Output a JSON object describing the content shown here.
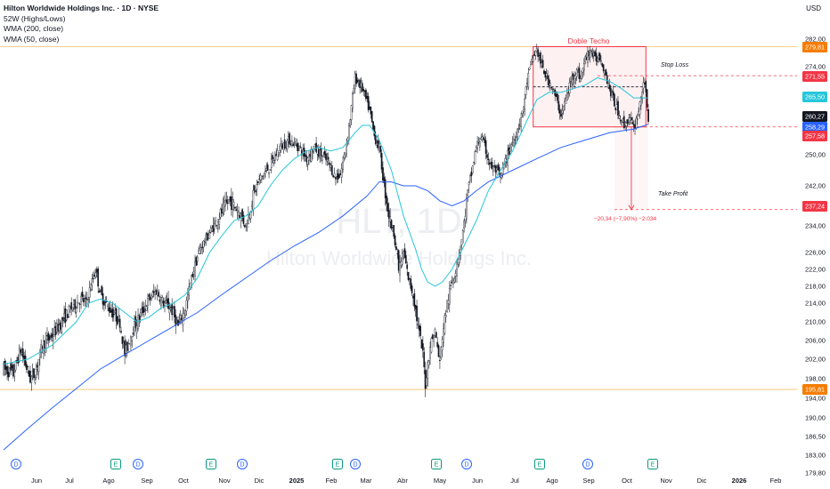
{
  "header": {
    "title": "Hilton Worldwide Holdings Inc. · 1D · NYSE",
    "indicators": [
      "52W (Highs/Lows)",
      "WMA (200, close)",
      "WMA (50, close)"
    ],
    "currency": "USD"
  },
  "watermark": {
    "ticker": "HLT, 1D",
    "company": "Hilton Worldwide Holdings Inc."
  },
  "chart_data": {
    "type": "candlestick",
    "y_axis": {
      "ticks": [
        282,
        274,
        266,
        258,
        250,
        242,
        234,
        226,
        222,
        218,
        214,
        210,
        206,
        202,
        198,
        194,
        190,
        186.5,
        183,
        179.8
      ],
      "tick_labels": [
        "282,00",
        "274,00",
        "266,00",
        "258,00",
        "250,00",
        "242,00",
        "234,00",
        "226,00",
        "222,00",
        "218,00",
        "214,00",
        "210,00",
        "206,00",
        "202,00",
        "198,00",
        "194,00",
        "190,00",
        "186,50",
        "183,00",
        "179,80"
      ],
      "scale": "log"
    },
    "x_axis": {
      "labels": [
        "Jun",
        "Jul",
        "Ago",
        "Sep",
        "Oct",
        "Nov",
        "Dic",
        "2025",
        "Feb",
        "Mar",
        "Abr",
        "May",
        "Jun",
        "Jul",
        "Ago",
        "Sep",
        "Oct",
        "Nov",
        "Dic",
        "2026",
        "Feb"
      ]
    },
    "price_labels": [
      {
        "value": "279,81",
        "color": "#f57c00"
      },
      {
        "value": "271,55",
        "color": "#f23645"
      },
      {
        "value": "265,50",
        "color": "#26c6da"
      },
      {
        "value": "260,27",
        "color": "#131722"
      },
      {
        "value": "258,29",
        "color": "#2962ff"
      },
      {
        "value": "257,58",
        "color": "#f23645"
      },
      {
        "value": "237,24",
        "color": "#f23645"
      },
      {
        "value": "195,81",
        "color": "#f57c00"
      }
    ],
    "levels": {
      "high_52w": 279.81,
      "low_52w": 195.81,
      "stop_loss": 271.55,
      "entry": 257.58,
      "take_profit": 237.24,
      "neckline": 268.5
    },
    "annotations": {
      "pattern_label": "Doble Techo",
      "stop_loss_label": "Stop Loss",
      "take_profit_label": "Take Profit",
      "measure_label": "−20,34 (−7,90%) −2.034"
    },
    "event_markers": [
      "D",
      "E",
      "D",
      "E",
      "D",
      "E",
      "D",
      "E",
      "D",
      "E",
      "D",
      "E"
    ],
    "close_series": [
      [
        0,
        200
      ],
      [
        8,
        199
      ],
      [
        14,
        204
      ],
      [
        22,
        198
      ],
      [
        26,
        199
      ],
      [
        32,
        205
      ],
      [
        40,
        207
      ],
      [
        48,
        210
      ],
      [
        56,
        213
      ],
      [
        64,
        215
      ],
      [
        68,
        214
      ],
      [
        72,
        218
      ],
      [
        76,
        222
      ],
      [
        80,
        216
      ],
      [
        84,
        214
      ],
      [
        90,
        212
      ],
      [
        96,
        210
      ],
      [
        100,
        203
      ],
      [
        106,
        208
      ],
      [
        112,
        211
      ],
      [
        118,
        214
      ],
      [
        126,
        217
      ],
      [
        132,
        214
      ],
      [
        138,
        213
      ],
      [
        144,
        209
      ],
      [
        150,
        213
      ],
      [
        156,
        221
      ],
      [
        162,
        227
      ],
      [
        170,
        232
      ],
      [
        178,
        236
      ],
      [
        186,
        239
      ],
      [
        194,
        237
      ],
      [
        200,
        234
      ],
      [
        206,
        240
      ],
      [
        212,
        244
      ],
      [
        220,
        247
      ],
      [
        228,
        252
      ],
      [
        236,
        254
      ],
      [
        244,
        252
      ],
      [
        250,
        249
      ],
      [
        256,
        252
      ],
      [
        262,
        250
      ],
      [
        268,
        248
      ],
      [
        274,
        244
      ],
      [
        278,
        245
      ],
      [
        282,
        251
      ],
      [
        286,
        260
      ],
      [
        290,
        271
      ],
      [
        296,
        268
      ],
      [
        302,
        262
      ],
      [
        306,
        255
      ],
      [
        310,
        252
      ],
      [
        314,
        242
      ],
      [
        318,
        236
      ],
      [
        322,
        232
      ],
      [
        326,
        222
      ],
      [
        330,
        226
      ],
      [
        334,
        220
      ],
      [
        338,
        216
      ],
      [
        342,
        209
      ],
      [
        346,
        203
      ],
      [
        348,
        197
      ],
      [
        352,
        205
      ],
      [
        356,
        208
      ],
      [
        360,
        201
      ],
      [
        362,
        207
      ],
      [
        366,
        214
      ],
      [
        370,
        219
      ],
      [
        374,
        223
      ],
      [
        378,
        230
      ],
      [
        382,
        239
      ],
      [
        386,
        245
      ],
      [
        390,
        252
      ],
      [
        394,
        255
      ],
      [
        398,
        251
      ],
      [
        402,
        247
      ],
      [
        406,
        246
      ],
      [
        410,
        244
      ],
      [
        414,
        248
      ],
      [
        418,
        252
      ],
      [
        422,
        255
      ],
      [
        428,
        261
      ],
      [
        432,
        270
      ],
      [
        436,
        276
      ],
      [
        440,
        279
      ],
      [
        444,
        274
      ],
      [
        448,
        271
      ],
      [
        452,
        269
      ],
      [
        456,
        265
      ],
      [
        460,
        261
      ],
      [
        464,
        265
      ],
      [
        468,
        270
      ],
      [
        472,
        273
      ],
      [
        476,
        271
      ],
      [
        480,
        276
      ],
      [
        484,
        279
      ],
      [
        488,
        276
      ],
      [
        492,
        277
      ],
      [
        496,
        273
      ],
      [
        500,
        268
      ],
      [
        504,
        264
      ],
      [
        508,
        261
      ],
      [
        512,
        258
      ],
      [
        516,
        260
      ],
      [
        520,
        257
      ],
      [
        524,
        262
      ],
      [
        528,
        270
      ],
      [
        530,
        266
      ],
      [
        532,
        260
      ]
    ],
    "wma50": [
      [
        0,
        201
      ],
      [
        20,
        202
      ],
      [
        40,
        205
      ],
      [
        60,
        210
      ],
      [
        70,
        214
      ],
      [
        80,
        215
      ],
      [
        90,
        214
      ],
      [
        100,
        212
      ],
      [
        110,
        210
      ],
      [
        120,
        211
      ],
      [
        130,
        213
      ],
      [
        140,
        214
      ],
      [
        150,
        216
      ],
      [
        160,
        220
      ],
      [
        170,
        226
      ],
      [
        180,
        231
      ],
      [
        190,
        235
      ],
      [
        200,
        236
      ],
      [
        210,
        238
      ],
      [
        220,
        242
      ],
      [
        230,
        246
      ],
      [
        240,
        249
      ],
      [
        250,
        251
      ],
      [
        260,
        252
      ],
      [
        270,
        251
      ],
      [
        280,
        252
      ],
      [
        290,
        256
      ],
      [
        296,
        258
      ],
      [
        302,
        258
      ],
      [
        310,
        254
      ],
      [
        320,
        246
      ],
      [
        330,
        236
      ],
      [
        340,
        227
      ],
      [
        345,
        222
      ],
      [
        350,
        219
      ],
      [
        356,
        218
      ],
      [
        362,
        219
      ],
      [
        370,
        222
      ],
      [
        380,
        228
      ],
      [
        390,
        235
      ],
      [
        400,
        241
      ],
      [
        410,
        246
      ],
      [
        420,
        251
      ],
      [
        430,
        258
      ],
      [
        440,
        265
      ],
      [
        450,
        267
      ],
      [
        460,
        267
      ],
      [
        470,
        268
      ],
      [
        480,
        269
      ],
      [
        490,
        271
      ],
      [
        500,
        270
      ],
      [
        510,
        268
      ],
      [
        520,
        265.5
      ],
      [
        532,
        265.5
      ]
    ],
    "wma200": [
      [
        0,
        184
      ],
      [
        20,
        188
      ],
      [
        40,
        192
      ],
      [
        60,
        196
      ],
      [
        80,
        200
      ],
      [
        100,
        203
      ],
      [
        120,
        206
      ],
      [
        140,
        209
      ],
      [
        160,
        212
      ],
      [
        180,
        216
      ],
      [
        200,
        220
      ],
      [
        220,
        224
      ],
      [
        240,
        228
      ],
      [
        260,
        232
      ],
      [
        280,
        236
      ],
      [
        300,
        240
      ],
      [
        310,
        243
      ],
      [
        320,
        243
      ],
      [
        330,
        242
      ],
      [
        340,
        242
      ],
      [
        350,
        241
      ],
      [
        360,
        239
      ],
      [
        370,
        238
      ],
      [
        380,
        239
      ],
      [
        390,
        241
      ],
      [
        400,
        243
      ],
      [
        420,
        246
      ],
      [
        440,
        249
      ],
      [
        460,
        252
      ],
      [
        480,
        254
      ],
      [
        500,
        256
      ],
      [
        520,
        257
      ],
      [
        532,
        258.29
      ]
    ]
  }
}
